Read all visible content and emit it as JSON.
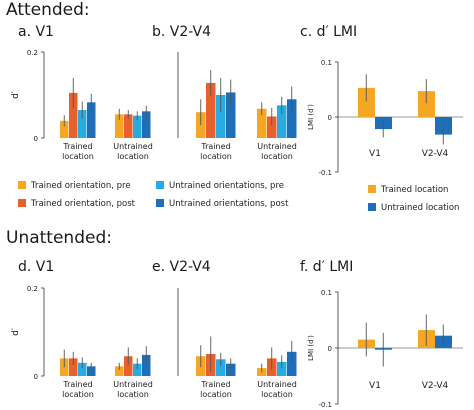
{
  "sections": [
    {
      "title": "Attended:"
    },
    {
      "title": "Unattended:"
    }
  ],
  "colors": {
    "trained_pre": "#F5A623",
    "trained_post": "#E8602C",
    "untrained_pre": "#29ABE2",
    "untrained_post": "#1F6FB8",
    "error_bar": "#555555",
    "axis": "#333333"
  },
  "chart_data": [
    {
      "id": "a",
      "type": "bar",
      "title": "a. V1",
      "ylabel": "d′",
      "ylim": [
        0,
        0.2
      ],
      "yticks": [
        "0",
        "0.2"
      ],
      "categories": [
        "Trained location",
        "Untrained location"
      ],
      "series": [
        {
          "name": "Trained orientation, pre",
          "values": [
            0.04,
            0.055
          ],
          "errors": [
            0.013,
            0.013
          ]
        },
        {
          "name": "Trained orientation, post",
          "values": [
            0.105,
            0.055
          ],
          "errors": [
            0.035,
            0.01
          ]
        },
        {
          "name": "Untrained orientations, pre",
          "values": [
            0.065,
            0.052
          ],
          "errors": [
            0.02,
            0.01
          ]
        },
        {
          "name": "Untrained orientations, post",
          "values": [
            0.083,
            0.062
          ],
          "errors": [
            0.02,
            0.013
          ]
        }
      ]
    },
    {
      "id": "b",
      "type": "bar",
      "title": "b. V2-V4",
      "ylabel": "",
      "ylim": [
        0,
        0.2
      ],
      "categories": [
        "Trained location",
        "Untrained location"
      ],
      "series": [
        {
          "name": "Trained orientation, pre",
          "values": [
            0.06,
            0.068
          ],
          "errors": [
            0.03,
            0.015
          ]
        },
        {
          "name": "Trained orientation, post",
          "values": [
            0.128,
            0.05
          ],
          "errors": [
            0.03,
            0.02
          ]
        },
        {
          "name": "Untrained orientations, pre",
          "values": [
            0.1,
            0.076
          ],
          "errors": [
            0.04,
            0.02
          ]
        },
        {
          "name": "Untrained orientations, post",
          "values": [
            0.106,
            0.09
          ],
          "errors": [
            0.03,
            0.03
          ]
        }
      ]
    },
    {
      "id": "c",
      "type": "bar",
      "title": "c. d′ LMI",
      "ylabel": "LMI (d′)",
      "ylim": [
        -0.1,
        0.1
      ],
      "yticks": [
        "0.1",
        "0",
        "-0.1"
      ],
      "categories": [
        "V1",
        "V2-V4"
      ],
      "series": [
        {
          "name": "Trained location",
          "values": [
            0.053,
            0.047
          ],
          "errors": [
            0.025,
            0.022
          ]
        },
        {
          "name": "Untrained location",
          "values": [
            -0.022,
            -0.032
          ],
          "errors": [
            0.015,
            0.018
          ]
        }
      ]
    },
    {
      "id": "d",
      "type": "bar",
      "title": "d. V1",
      "ylabel": "d′",
      "ylim": [
        0,
        0.2
      ],
      "yticks": [
        "0",
        "0.2"
      ],
      "categories": [
        "Trained location",
        "Untrained location"
      ],
      "series": [
        {
          "name": "Trained orientation, pre",
          "values": [
            0.04,
            0.022
          ],
          "errors": [
            0.02,
            0.008
          ]
        },
        {
          "name": "Trained orientation, post",
          "values": [
            0.04,
            0.045
          ],
          "errors": [
            0.015,
            0.02
          ]
        },
        {
          "name": "Untrained orientations, pre",
          "values": [
            0.03,
            0.028
          ],
          "errors": [
            0.012,
            0.012
          ]
        },
        {
          "name": "Untrained orientations, post",
          "values": [
            0.022,
            0.048
          ],
          "errors": [
            0.008,
            0.02
          ]
        }
      ]
    },
    {
      "id": "e",
      "type": "bar",
      "title": "e. V2-V4",
      "ylabel": "",
      "ylim": [
        0,
        0.2
      ],
      "categories": [
        "Trained location",
        "Untrained location"
      ],
      "series": [
        {
          "name": "Trained orientation, pre",
          "values": [
            0.045,
            0.018
          ],
          "errors": [
            0.025,
            0.01
          ]
        },
        {
          "name": "Trained orientation, post",
          "values": [
            0.05,
            0.04
          ],
          "errors": [
            0.04,
            0.025
          ]
        },
        {
          "name": "Untrained orientations, pre",
          "values": [
            0.038,
            0.032
          ],
          "errors": [
            0.015,
            0.015
          ]
        },
        {
          "name": "Untrained orientations, post",
          "values": [
            0.028,
            0.055
          ],
          "errors": [
            0.012,
            0.025
          ]
        }
      ]
    },
    {
      "id": "f",
      "type": "bar",
      "title": "f. d′ LMI",
      "ylabel": "LMI (d′)",
      "ylim": [
        -0.1,
        0.1
      ],
      "yticks": [
        "0.1",
        "0",
        "-0.1"
      ],
      "categories": [
        "V1",
        "V2-V4"
      ],
      "series": [
        {
          "name": "Trained location",
          "values": [
            0.015,
            0.032
          ],
          "errors": [
            0.03,
            0.028
          ]
        },
        {
          "name": "Untrained location",
          "values": [
            -0.003,
            0.022
          ],
          "errors": [
            0.03,
            0.02
          ]
        }
      ]
    }
  ],
  "legends": {
    "four_way": [
      {
        "label": "Trained orientation, pre",
        "color_key": "trained_pre"
      },
      {
        "label": "Trained orientation, post",
        "color_key": "trained_post"
      },
      {
        "label": "Untrained orientations, pre",
        "color_key": "untrained_pre"
      },
      {
        "label": "Untrained orientations, post",
        "color_key": "untrained_post"
      }
    ],
    "two_way": [
      {
        "label": "Trained location",
        "color_key": "trained_pre"
      },
      {
        "label": "Untrained location",
        "color_key": "untrained_post"
      }
    ]
  }
}
